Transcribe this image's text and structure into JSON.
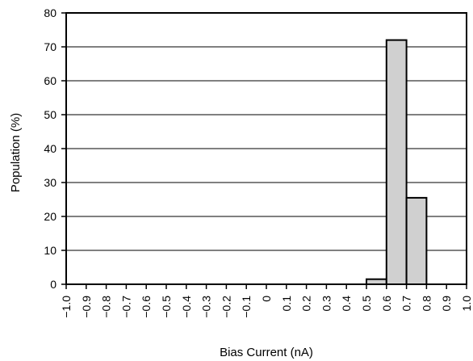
{
  "chart_data": {
    "type": "bar",
    "title": "",
    "xlabel": "Bias Current (nA)",
    "ylabel": "Population (%)",
    "xlim": [
      -1.0,
      1.0
    ],
    "ylim": [
      0,
      80
    ],
    "x_ticks": [
      "−1.0",
      "−0.9",
      "−0.8",
      "−0.7",
      "−0.6",
      "−0.5",
      "−0.4",
      "−0.3",
      "−0.2",
      "−0.1",
      "0",
      "0.1",
      "0.2",
      "0.3",
      "0.4",
      "0.5",
      "0.6",
      "0.7",
      "0.8",
      "0.9",
      "1.0"
    ],
    "x_tick_values": [
      -1.0,
      -0.9,
      -0.8,
      -0.7,
      -0.6,
      -0.5,
      -0.4,
      -0.3,
      -0.2,
      -0.1,
      0,
      0.1,
      0.2,
      0.3,
      0.4,
      0.5,
      0.6,
      0.7,
      0.8,
      0.9,
      1.0
    ],
    "y_ticks": [
      0,
      10,
      20,
      30,
      40,
      50,
      60,
      70,
      80
    ],
    "bins": [
      {
        "start": 0.5,
        "end": 0.6,
        "value": 1.5
      },
      {
        "start": 0.6,
        "end": 0.7,
        "value": 72
      },
      {
        "start": 0.7,
        "end": 0.8,
        "value": 25.5
      }
    ],
    "grid": "horizontal",
    "bar_color": "#d0d0d0",
    "edge_color": "#000000"
  }
}
